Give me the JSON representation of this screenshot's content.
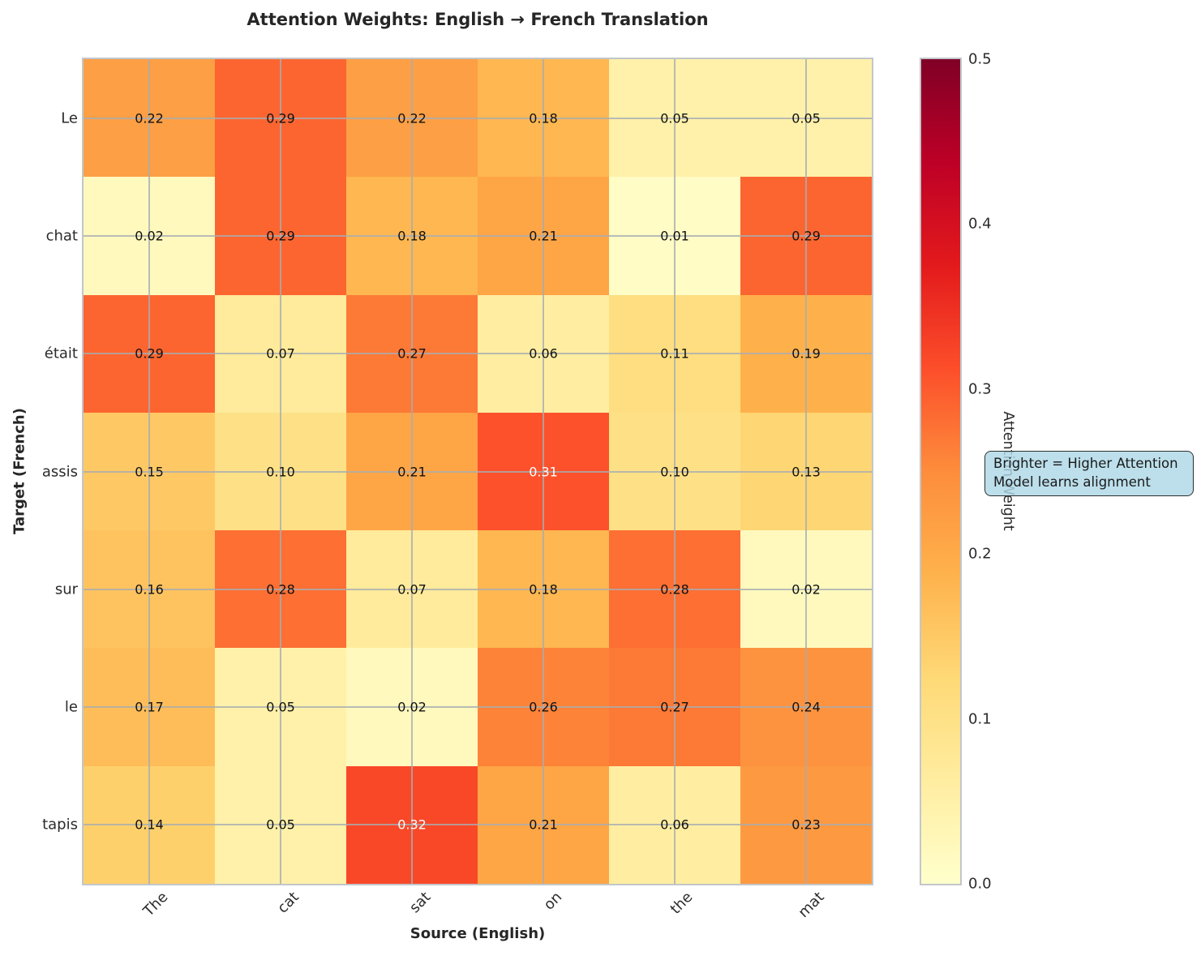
{
  "chart_data": {
    "type": "heatmap",
    "title": "Attention Weights: English → French Translation",
    "xlabel": "Source (English)",
    "ylabel": "Target (French)",
    "x_labels": [
      "The",
      "cat",
      "sat",
      "on",
      "the",
      "mat"
    ],
    "y_labels": [
      "Le",
      "chat",
      "était",
      "assis",
      "sur",
      "le",
      "tapis"
    ],
    "values": [
      [
        0.22,
        0.29,
        0.22,
        0.18,
        0.05,
        0.05
      ],
      [
        0.02,
        0.29,
        0.18,
        0.21,
        0.01,
        0.29
      ],
      [
        0.29,
        0.07,
        0.27,
        0.06,
        0.11,
        0.19
      ],
      [
        0.15,
        0.1,
        0.21,
        0.31,
        0.1,
        0.13
      ],
      [
        0.16,
        0.28,
        0.07,
        0.18,
        0.28,
        0.02
      ],
      [
        0.17,
        0.05,
        0.02,
        0.26,
        0.27,
        0.24
      ],
      [
        0.14,
        0.05,
        0.32,
        0.21,
        0.06,
        0.23
      ]
    ],
    "value_decimals": 2,
    "grid": true,
    "white_text_threshold": 0.3,
    "colorbar": {
      "label": "Attention Weight",
      "vmin": 0.0,
      "vmax": 0.5,
      "ticks": [
        0.0,
        0.1,
        0.2,
        0.3,
        0.4,
        0.5
      ],
      "tick_decimals": 1
    },
    "colormap": {
      "name": "YlOrRd",
      "stops": [
        [
          0.0,
          "#ffffcc"
        ],
        [
          0.125,
          "#ffeda0"
        ],
        [
          0.25,
          "#fed976"
        ],
        [
          0.375,
          "#feb24c"
        ],
        [
          0.5,
          "#fd8d3c"
        ],
        [
          0.625,
          "#fc4e2a"
        ],
        [
          0.75,
          "#e31a1c"
        ],
        [
          0.875,
          "#bd0026"
        ],
        [
          1.0,
          "#800026"
        ]
      ]
    },
    "annotation": {
      "line1": "Brighter = Higher Attention",
      "line2": "Model learns alignment",
      "bg_color": "#add8e6"
    }
  }
}
